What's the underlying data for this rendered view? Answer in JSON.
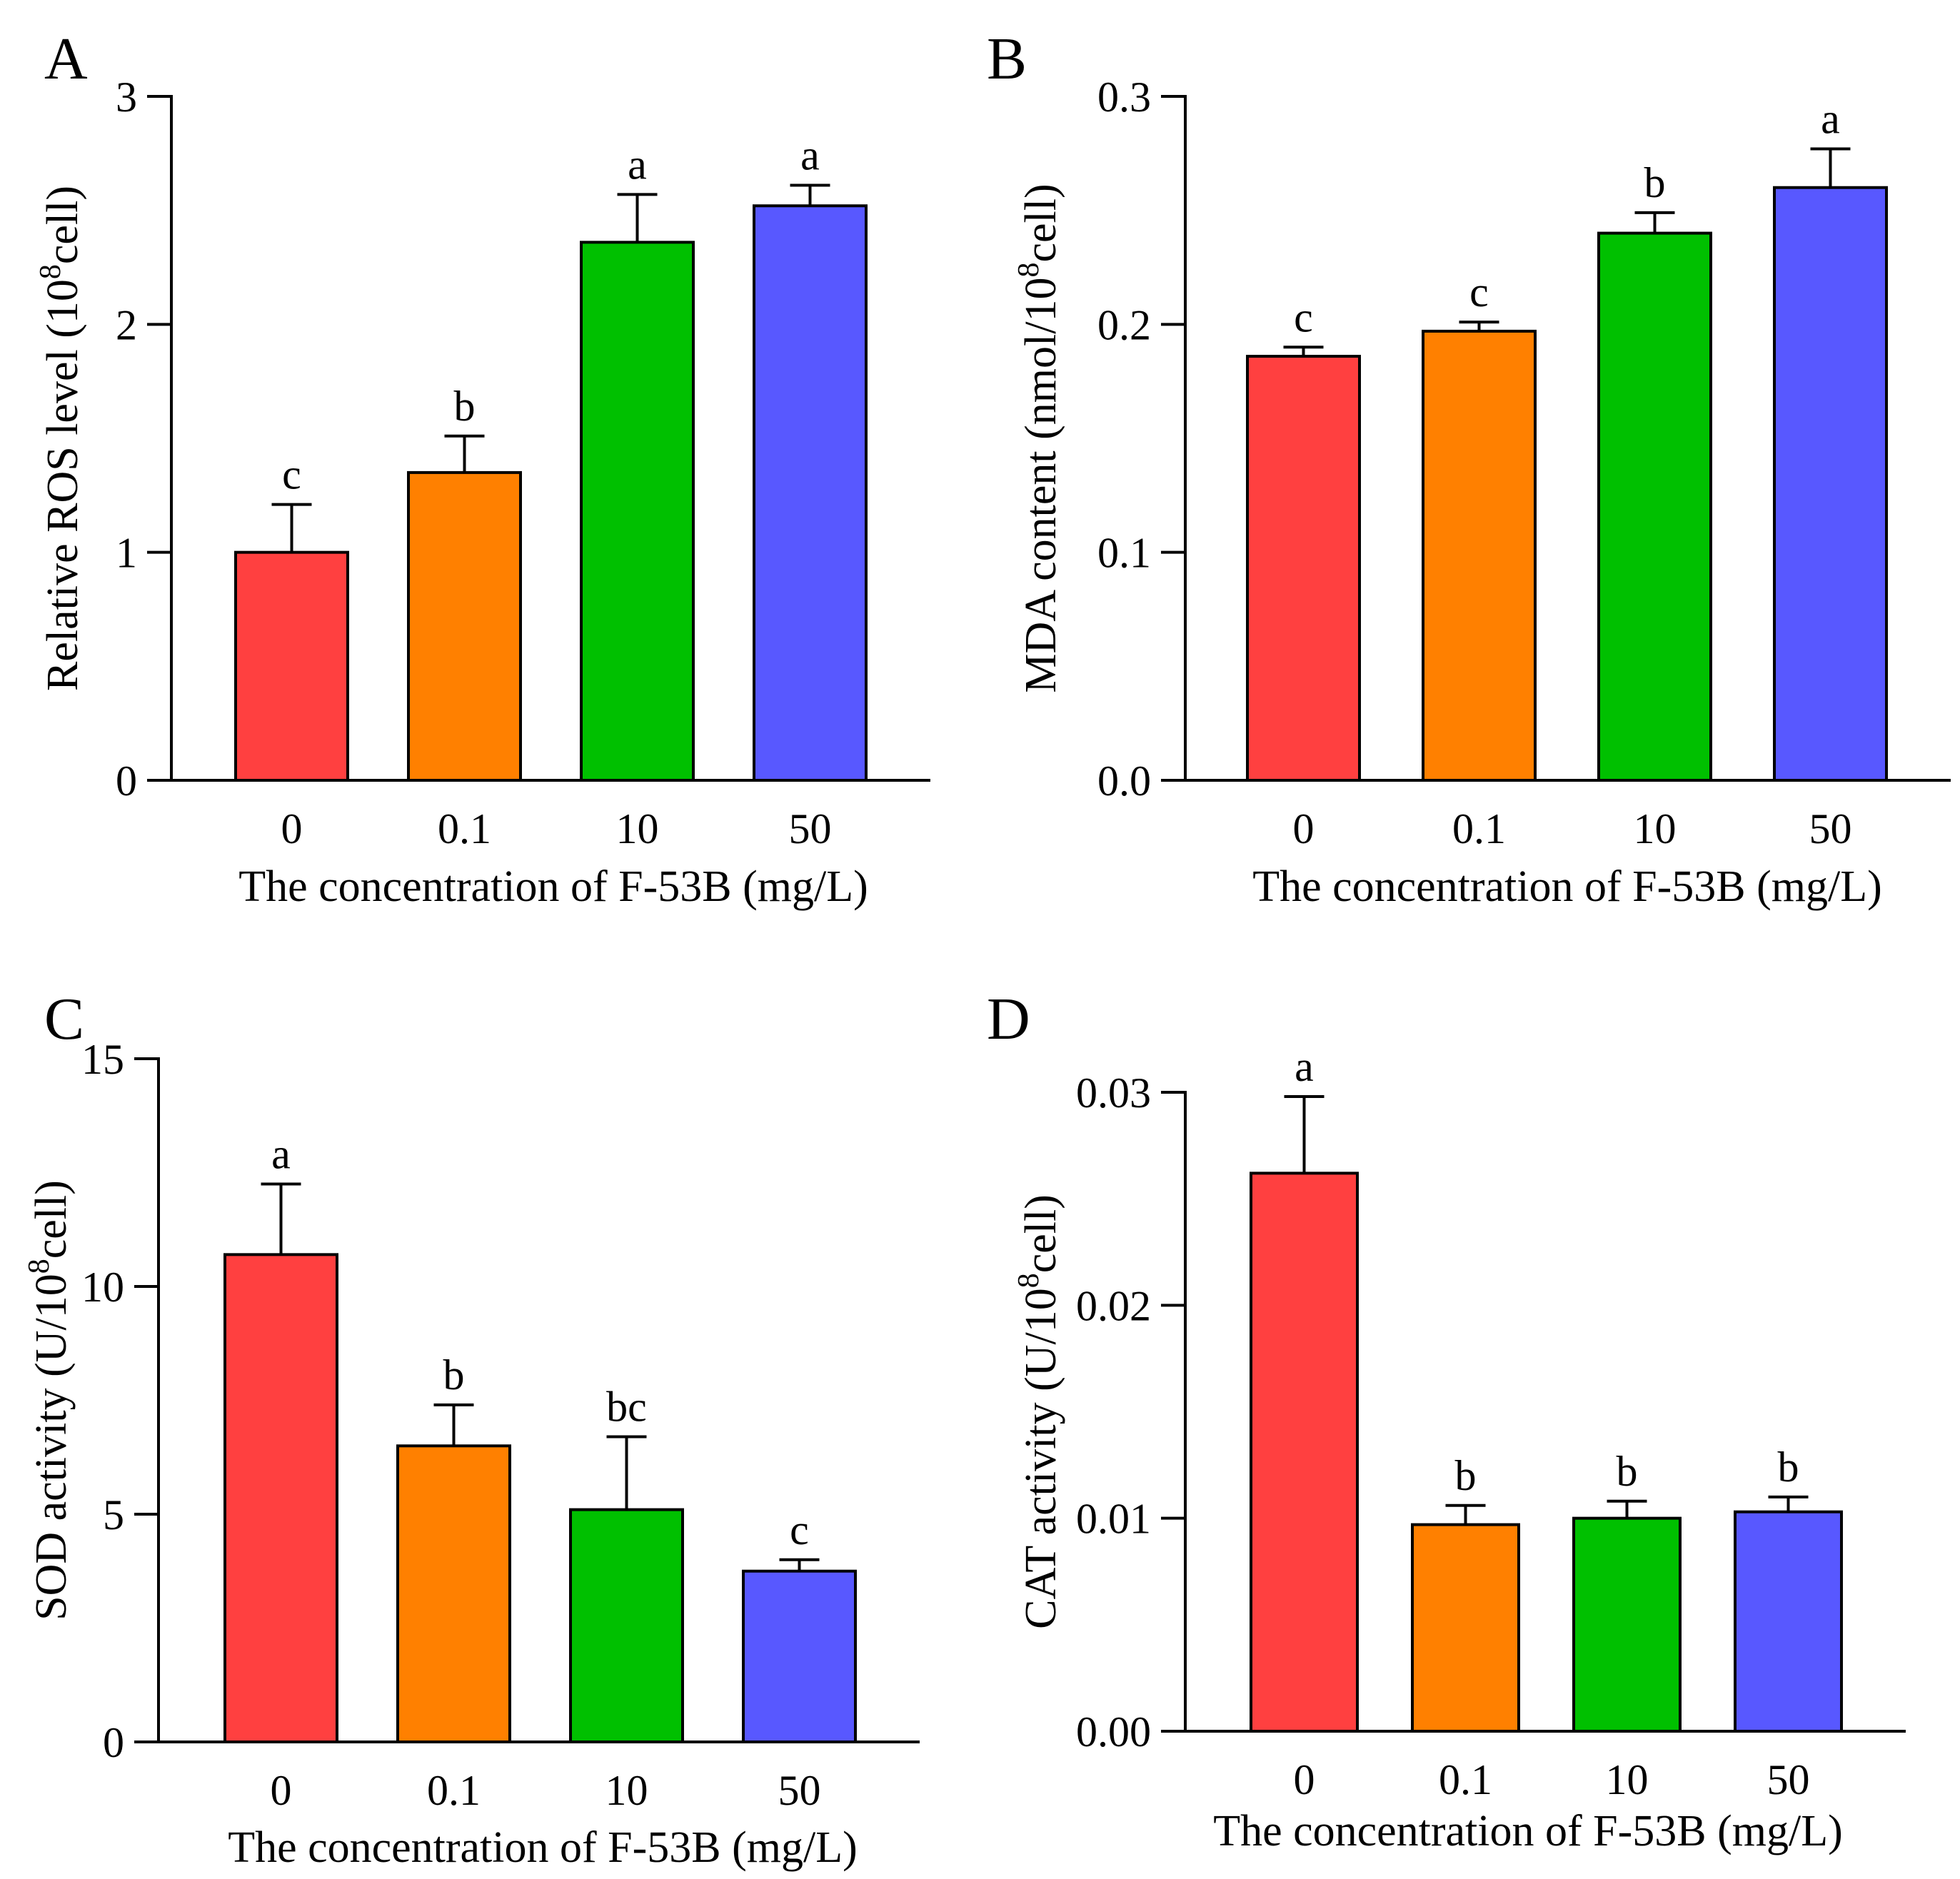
{
  "chart_data": [
    {
      "type": "bar",
      "panel": "A",
      "categories": [
        "0",
        "0.1",
        "10",
        "50"
      ],
      "values": [
        1.0,
        1.35,
        2.36,
        2.52
      ],
      "errors": [
        0.21,
        0.16,
        0.21,
        0.09
      ],
      "significance": [
        "c",
        "b",
        "a",
        "a"
      ],
      "colors": [
        "#ff4040",
        "#ff8000",
        "#00c000",
        "#5858ff"
      ],
      "ylim": [
        0,
        3
      ],
      "yticks": [
        "0",
        "1",
        "2",
        "3"
      ],
      "ytick_values": [
        0,
        1,
        2,
        3
      ],
      "ylabel": "Relative ROS level (10",
      "ylabel_sup": "8",
      "ylabel_tail": "cell)",
      "xlabel": "The concentration of F-53B (mg/L)",
      "grid": false
    },
    {
      "type": "bar",
      "panel": "B",
      "categories": [
        "0",
        "0.1",
        "10",
        "50"
      ],
      "values": [
        0.186,
        0.197,
        0.24,
        0.26
      ],
      "errors": [
        0.004,
        0.004,
        0.009,
        0.017
      ],
      "significance": [
        "c",
        "c",
        "b",
        "a"
      ],
      "colors": [
        "#ff4040",
        "#ff8000",
        "#00c000",
        "#5858ff"
      ],
      "ylim": [
        0,
        0.3
      ],
      "yticks": [
        "0.0",
        "0.1",
        "0.2",
        "0.3"
      ],
      "ytick_values": [
        0,
        0.1,
        0.2,
        0.3
      ],
      "ylabel": "MDA content (nmol/10",
      "ylabel_sup": "8",
      "ylabel_tail": "cell)",
      "xlabel": "The concentration of F-53B (mg/L)",
      "grid": false
    },
    {
      "type": "bar",
      "panel": "C",
      "categories": [
        "0",
        "0.1",
        "10",
        "50"
      ],
      "values": [
        10.7,
        6.5,
        5.1,
        3.75
      ],
      "errors": [
        1.55,
        0.9,
        1.6,
        0.25
      ],
      "significance": [
        "a",
        "b",
        "bc",
        "c"
      ],
      "colors": [
        "#ff4040",
        "#ff8000",
        "#00c000",
        "#5858ff"
      ],
      "ylim": [
        0,
        15
      ],
      "yticks": [
        "0",
        "5",
        "10",
        "15"
      ],
      "ytick_values": [
        0,
        5,
        10,
        15
      ],
      "ylabel": "SOD activity (U/10",
      "ylabel_sup": "8",
      "ylabel_tail": "cell)",
      "xlabel": "The concentration of F-53B (mg/L)",
      "grid": false
    },
    {
      "type": "bar",
      "panel": "D",
      "categories": [
        "0",
        "0.1",
        "10",
        "50"
      ],
      "values": [
        0.0262,
        0.0097,
        0.01,
        0.0103
      ],
      "errors": [
        0.0036,
        0.0009,
        0.0008,
        0.0007
      ],
      "significance": [
        "a",
        "b",
        "b",
        "b"
      ],
      "colors": [
        "#ff4040",
        "#ff8000",
        "#00c000",
        "#5858ff"
      ],
      "ylim": [
        0,
        0.03
      ],
      "yticks": [
        "0.00",
        "0.01",
        "0.02",
        "0.03"
      ],
      "ytick_values": [
        0,
        0.01,
        0.02,
        0.03
      ],
      "ylabel": "CAT activity (U/10",
      "ylabel_sup": "8",
      "ylabel_tail": "cell)",
      "xlabel": "The concentration of F-53B (mg/L)",
      "grid": false
    }
  ]
}
